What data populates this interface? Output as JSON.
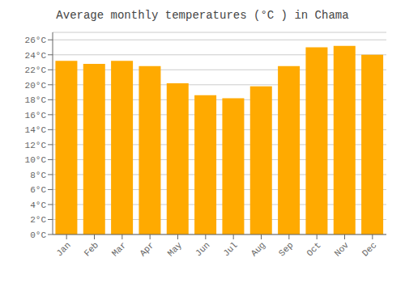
{
  "chart_data": {
    "type": "bar",
    "title": "Average monthly temperatures (°C ) in Chama",
    "categories": [
      "Jan",
      "Feb",
      "Mar",
      "Apr",
      "May",
      "Jun",
      "Jul",
      "Aug",
      "Sep",
      "Oct",
      "Nov",
      "Dec"
    ],
    "values": [
      23.2,
      22.8,
      23.2,
      22.5,
      20.2,
      18.6,
      18.2,
      19.8,
      22.5,
      25.0,
      25.2,
      24.0
    ],
    "color": "#FFAA00",
    "ylim": [
      0,
      27
    ],
    "yticks": [
      {
        "value": 0,
        "label": "0°C"
      },
      {
        "value": 2,
        "label": "2°C"
      },
      {
        "value": 4,
        "label": "4°C"
      },
      {
        "value": 6,
        "label": "6°C"
      },
      {
        "value": 8,
        "label": "8°C"
      },
      {
        "value": 10,
        "label": "10°C"
      },
      {
        "value": 12,
        "label": "12°C"
      },
      {
        "value": 14,
        "label": "14°C"
      },
      {
        "value": 16,
        "label": "16°C"
      },
      {
        "value": 18,
        "label": "18°C"
      },
      {
        "value": 20,
        "label": "20°C"
      },
      {
        "value": 22,
        "label": "22°C"
      },
      {
        "value": 24,
        "label": "24°C"
      },
      {
        "value": 26,
        "label": "26°C"
      }
    ],
    "grid": true
  }
}
